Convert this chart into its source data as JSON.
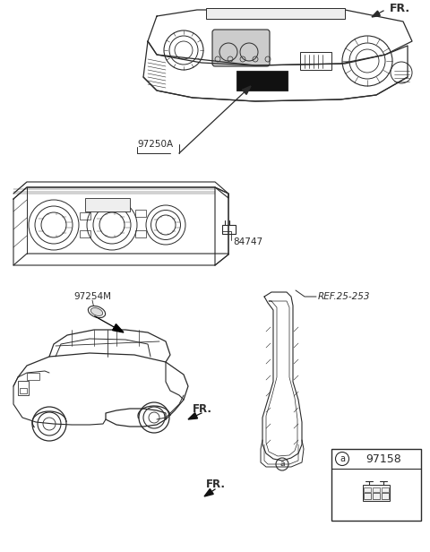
{
  "bg_color": "#ffffff",
  "line_color": "#2a2a2a",
  "labels": {
    "FR": "FR.",
    "part_97250A": "97250A",
    "part_84747": "84747",
    "part_97254M": "97254M",
    "part_97158": "97158",
    "ref_25_253": "REF.25-253",
    "fr_bottom": "FR.",
    "circle_a": "a"
  },
  "figsize": [
    4.8,
    6.16
  ],
  "dpi": 100
}
